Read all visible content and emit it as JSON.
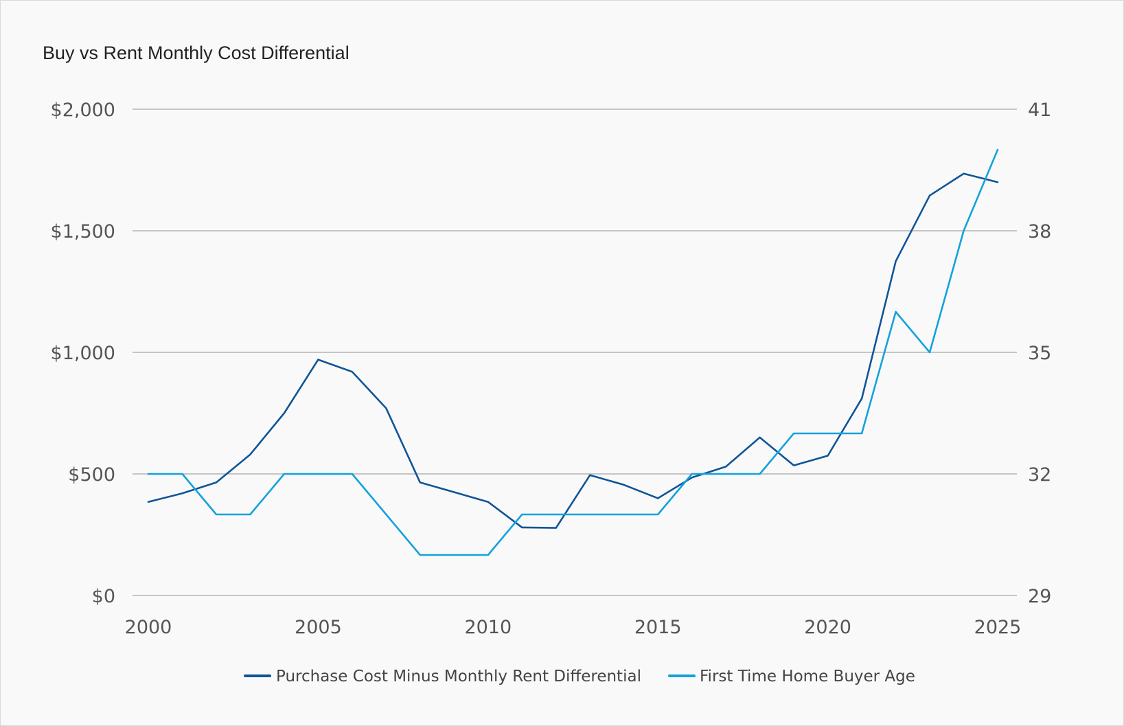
{
  "chart_data": {
    "type": "line",
    "title": "Buy vs Rent Monthly Cost Differential",
    "xlabel": "",
    "ylabel": "",
    "ylabel_right": "",
    "xlim": [
      2000,
      2025
    ],
    "ylim": [
      0,
      2000
    ],
    "ylim_right": [
      29,
      41
    ],
    "x_ticks": [
      2000,
      2005,
      2010,
      2015,
      2020,
      2025
    ],
    "x_tick_labels": [
      "2000",
      "2005",
      "2010",
      "2015",
      "2020",
      "2025"
    ],
    "y_ticks": [
      0,
      500,
      1000,
      1500,
      2000
    ],
    "y_tick_labels": [
      "$0",
      "$500",
      "$1,000",
      "$1,500",
      "$2,000"
    ],
    "y_right_ticks": [
      29,
      32,
      35,
      38,
      41
    ],
    "y_right_tick_labels": [
      "29",
      "32",
      "35",
      "38",
      "41"
    ],
    "grid": "horizontal",
    "legend_position": "bottom",
    "series": [
      {
        "name": "Purchase Cost Minus Monthly Rent Differential",
        "axis": "left",
        "color": "#0f5597",
        "x": [
          2000,
          2001,
          2002,
          2003,
          2004,
          2005,
          2006,
          2007,
          2008,
          2009,
          2010,
          2011,
          2012,
          2013,
          2014,
          2015,
          2016,
          2017,
          2018,
          2019,
          2020,
          2021,
          2022,
          2023,
          2024,
          2025
        ],
        "values": [
          385,
          420,
          465,
          580,
          750,
          970,
          920,
          770,
          465,
          425,
          385,
          280,
          278,
          495,
          455,
          400,
          485,
          530,
          650,
          535,
          575,
          810,
          1375,
          1645,
          1735,
          1700
        ]
      },
      {
        "name": "First Time Home Buyer Age",
        "axis": "right",
        "color": "#13a2dc",
        "x": [
          2000,
          2001,
          2002,
          2003,
          2004,
          2005,
          2006,
          2007,
          2008,
          2009,
          2010,
          2011,
          2012,
          2013,
          2014,
          2015,
          2016,
          2017,
          2018,
          2019,
          2020,
          2021,
          2022,
          2023,
          2024,
          2025
        ],
        "values": [
          32,
          32,
          31,
          31,
          32,
          32,
          32,
          31,
          30,
          30,
          30,
          31,
          31,
          31,
          31,
          31,
          32,
          32,
          32,
          33,
          33,
          33,
          36,
          35,
          38,
          40
        ]
      }
    ]
  }
}
